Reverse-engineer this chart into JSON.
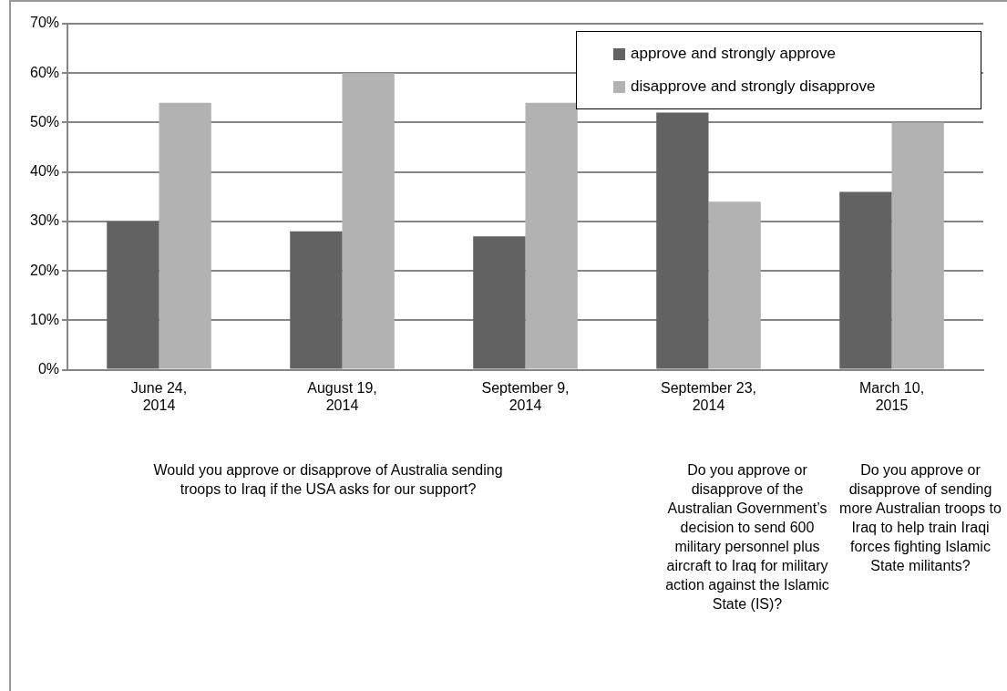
{
  "chart_data": {
    "type": "bar",
    "categories": [
      "June 24, 2014",
      "August 19, 2014",
      "September 9, 2014",
      "September 23, 2014",
      "March 10, 2015"
    ],
    "series": [
      {
        "name": "approve and strongly approve",
        "color": "#626262",
        "values": [
          30,
          28,
          27,
          52,
          36
        ]
      },
      {
        "name": "disapprove and strongly disapprove",
        "color": "#b2b2b2",
        "values": [
          54,
          60,
          54,
          34,
          50
        ]
      }
    ],
    "ylim": [
      0,
      70
    ],
    "yticks": [
      {
        "value": 0,
        "label": "0%"
      },
      {
        "value": 10,
        "label": "10%"
      },
      {
        "value": 20,
        "label": "20%"
      },
      {
        "value": 30,
        "label": "30%"
      },
      {
        "value": 40,
        "label": "40%"
      },
      {
        "value": 50,
        "label": "50%"
      },
      {
        "value": 60,
        "label": "60%"
      },
      {
        "value": 70,
        "label": "70%"
      }
    ],
    "grid": "y",
    "legend": "top right",
    "annotations": [
      "Would you approve or disapprove of Australia sending troops to Iraq if the USA asks for our support?",
      "Do you approve or disapprove of the Australian Government’s decision to send 600 military personnel plus aircraft to Iraq for military action against the Islamic State (IS)?",
      "Do you approve or disapprove of sending more Australian troops to Iraq to help train Iraqi forces fighting Islamic State militants?"
    ]
  }
}
